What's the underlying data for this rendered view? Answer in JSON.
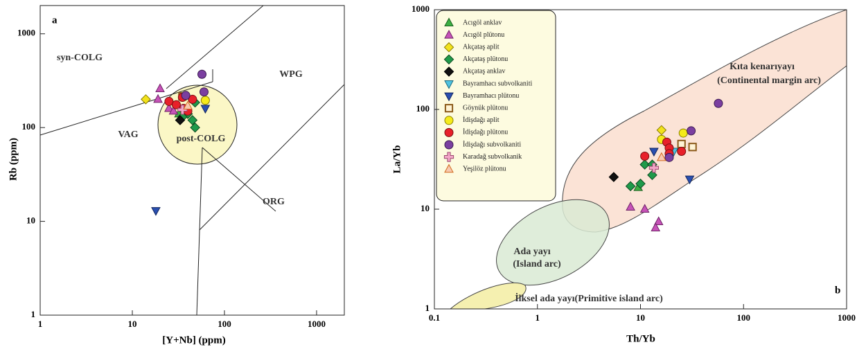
{
  "chart_data": [
    {
      "type": "scatter",
      "panel_label": "a",
      "xlabel": "[Y+Nb] (ppm)",
      "ylabel": "Rb (ppm)",
      "xscale": "log",
      "yscale": "log",
      "xlim": [
        1,
        2000
      ],
      "ylim": [
        1,
        2000
      ],
      "xticks": [
        1,
        10,
        100,
        1000
      ],
      "yticks": [
        1,
        10,
        100,
        1000
      ],
      "region_labels": [
        "syn-COLG",
        "WPG",
        "VAG",
        "post-COLG",
        "ORG"
      ],
      "series": [
        {
          "marker": "triangle",
          "color": "#3cb043",
          "edgecolor": "#1a5e1e",
          "x": [
            32
          ],
          "values": [
            140
          ]
        },
        {
          "marker": "triangle",
          "color": "#c653b8",
          "edgecolor": "#6e2266",
          "x": [
            20,
            19,
            25,
            28
          ],
          "values": [
            260,
            200,
            160,
            150
          ]
        },
        {
          "marker": "diamond",
          "color": "#f2e21b",
          "edgecolor": "#8a7d00",
          "x": [
            14
          ],
          "values": [
            200
          ]
        },
        {
          "marker": "diamond",
          "color": "#1f9a4a",
          "edgecolor": "#0c4a20",
          "x": [
            40,
            45,
            48,
            48,
            35
          ],
          "values": [
            140,
            120,
            185,
            100,
            130
          ]
        },
        {
          "marker": "diamond",
          "color": "#111111",
          "edgecolor": "#000000",
          "x": [
            33
          ],
          "values": [
            120
          ]
        },
        {
          "marker": "triangle-down",
          "color": "#2a4fb0",
          "edgecolor": "#12265e",
          "x": [
            18,
            62
          ],
          "values": [
            13,
            160
          ]
        },
        {
          "marker": "square",
          "color": "#fff4d6",
          "edgecolor": "#8b5a1a",
          "x": [
            35
          ],
          "values": [
            215
          ]
        },
        {
          "marker": "circle",
          "color": "#f5eb1a",
          "edgecolor": "#8a7d00",
          "x": [
            62
          ],
          "values": [
            195
          ]
        },
        {
          "marker": "circle",
          "color": "#e8202a",
          "edgecolor": "#7a0e12",
          "x": [
            25,
            30,
            36,
            40,
            45,
            35
          ],
          "values": [
            190,
            175,
            160,
            150,
            200,
            210
          ]
        },
        {
          "marker": "circle",
          "color": "#7b3fa0",
          "edgecolor": "#3a1a50",
          "x": [
            57,
            60,
            38
          ],
          "values": [
            370,
            240,
            220
          ]
        },
        {
          "marker": "plus",
          "color": "#f3a6c8",
          "edgecolor": "#9a4a70",
          "x": [
            35
          ],
          "values": [
            155
          ]
        },
        {
          "marker": "triangle",
          "color": "#f7c9b0",
          "edgecolor": "#d2691e",
          "x": [
            40
          ],
          "values": [
            170
          ]
        }
      ]
    },
    {
      "type": "scatter",
      "panel_label": "b",
      "xlabel": "Th/Yb",
      "ylabel": "La/Yb",
      "xscale": "log",
      "yscale": "log",
      "xlim": [
        0.1,
        1000
      ],
      "ylim": [
        1,
        1000
      ],
      "xticks": [
        0.1,
        1,
        10,
        100,
        1000
      ],
      "yticks": [
        1,
        10,
        100,
        1000
      ],
      "legend": "upper left",
      "region_labels": [
        "Kıta kenarıyayı",
        "(Continental margin arc)",
        "Ada yayı",
        "(Island arc)",
        "İlksel ada yayı(Primitive island arc)"
      ],
      "series": [
        {
          "name": "Acıgöl anklav",
          "marker": "triangle",
          "color": "#3cb043",
          "edgecolor": "#1a5e1e",
          "x": [
            9.5
          ],
          "values": [
            16.5
          ]
        },
        {
          "name": "Acıgöl plütonu",
          "marker": "triangle",
          "color": "#c653b8",
          "edgecolor": "#6e2266",
          "x": [
            8,
            11,
            15,
            14
          ],
          "values": [
            10.5,
            10,
            7.5,
            6.5
          ]
        },
        {
          "name": "Akçataş aplit",
          "marker": "diamond",
          "color": "#f2e21b",
          "edgecolor": "#8a7d00",
          "x": [
            16
          ],
          "values": [
            62
          ]
        },
        {
          "name": "Akçataş plütonu",
          "marker": "diamond",
          "color": "#1f9a4a",
          "edgecolor": "#0c4a20",
          "x": [
            8,
            10,
            11,
            13,
            13
          ],
          "values": [
            17,
            18,
            28,
            22,
            28
          ]
        },
        {
          "name": "Akçataş anklav",
          "marker": "diamond",
          "color": "#111111",
          "edgecolor": "#000000",
          "x": [
            5.5
          ],
          "values": [
            21
          ]
        },
        {
          "name": "Bayramhacı subvolkaniti",
          "marker": "triangle-down",
          "color": "#4fc3e0",
          "edgecolor": "#1a6a80",
          "x": [
            21
          ],
          "values": [
            38
          ]
        },
        {
          "name": "Bayramhacı plütonu",
          "marker": "triangle-down",
          "color": "#2a4fb0",
          "edgecolor": "#12265e",
          "x": [
            13.5,
            30
          ],
          "values": [
            38,
            20
          ]
        },
        {
          "name": "Göynük plütonu",
          "marker": "square",
          "color": "#fff4d6",
          "edgecolor": "#8b5a1a",
          "x": [
            25,
            32
          ],
          "values": [
            45,
            42
          ]
        },
        {
          "name": "İdişdağı aplit",
          "marker": "circle",
          "color": "#f5eb1a",
          "edgecolor": "#8a7d00",
          "x": [
            26,
            16
          ],
          "values": [
            58,
            50
          ]
        },
        {
          "name": "İdişdağı plütonu",
          "marker": "circle",
          "color": "#e8202a",
          "edgecolor": "#7a0e12",
          "x": [
            18,
            19,
            11,
            25,
            19
          ],
          "values": [
            47,
            41,
            34,
            38,
            36
          ]
        },
        {
          "name": "İdişdağı subvolkaniti",
          "marker": "circle",
          "color": "#7b3fa0",
          "edgecolor": "#3a1a50",
          "x": [
            57,
            31,
            19
          ],
          "values": [
            115,
            61,
            33
          ]
        },
        {
          "name": "Karadağ subvolkanik",
          "marker": "plus",
          "color": "#f3a6c8",
          "edgecolor": "#9a4a70",
          "x": [
            13.5
          ],
          "values": [
            26
          ]
        },
        {
          "name": "Yeşilöz plütonu",
          "marker": "triangle",
          "color": "#f7c9b0",
          "edgecolor": "#d2691e",
          "x": [
            16
          ],
          "values": [
            33
          ]
        }
      ]
    }
  ]
}
